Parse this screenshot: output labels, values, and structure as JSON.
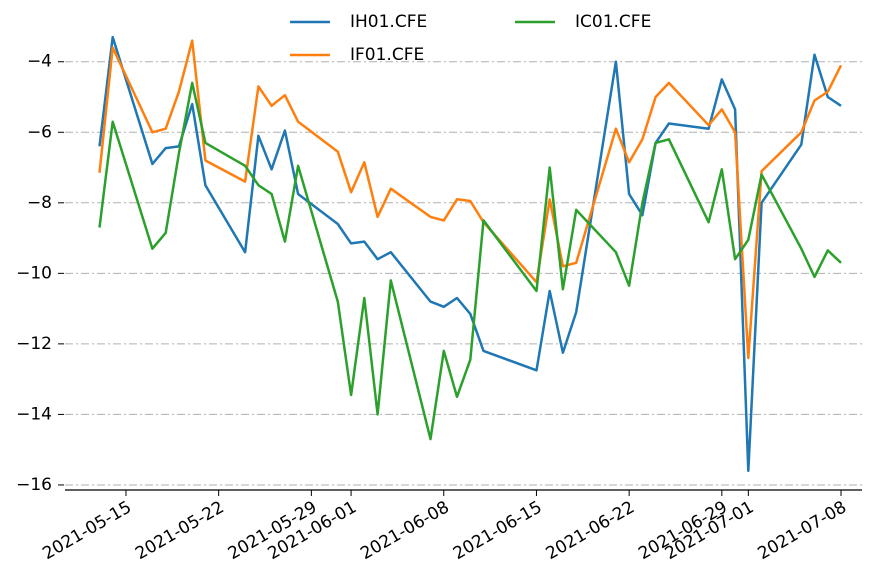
{
  "chart_data": {
    "type": "line",
    "x": [
      "2021-05-13",
      "2021-05-14",
      "2021-05-17",
      "2021-05-18",
      "2021-05-19",
      "2021-05-20",
      "2021-05-21",
      "2021-05-24",
      "2021-05-25",
      "2021-05-26",
      "2021-05-27",
      "2021-05-28",
      "2021-05-31",
      "2021-06-01",
      "2021-06-02",
      "2021-06-03",
      "2021-06-04",
      "2021-06-07",
      "2021-06-08",
      "2021-06-09",
      "2021-06-10",
      "2021-06-11",
      "2021-06-15",
      "2021-06-16",
      "2021-06-17",
      "2021-06-18",
      "2021-06-21",
      "2021-06-22",
      "2021-06-23",
      "2021-06-24",
      "2021-06-25",
      "2021-06-28",
      "2021-06-29",
      "2021-06-30",
      "2021-07-01",
      "2021-07-02",
      "2021-07-05",
      "2021-07-06",
      "2021-07-07",
      "2021-07-08"
    ],
    "series": [
      {
        "name": "IH01.CFE",
        "color": "#1f77b4",
        "values": [
          -6.4,
          -3.3,
          -6.9,
          -6.45,
          -6.4,
          -5.2,
          -7.5,
          -9.4,
          -6.1,
          -7.05,
          -5.95,
          -7.75,
          -8.6,
          -9.15,
          -9.1,
          -9.6,
          -9.4,
          -10.8,
          -10.95,
          -10.7,
          -11.15,
          -12.2,
          -12.75,
          -10.5,
          -12.25,
          -11.1,
          -4.0,
          -7.75,
          -8.35,
          -6.3,
          -5.75,
          -5.9,
          -4.5,
          -5.35,
          -15.6,
          -8.0,
          -6.35,
          -3.8,
          -5.0,
          -5.25
        ]
      },
      {
        "name": "IF01.CFE",
        "color": "#ff7f0e",
        "values": [
          -7.15,
          -3.6,
          -6.0,
          -5.9,
          -4.85,
          -3.4,
          -6.8,
          -7.4,
          -4.7,
          -5.25,
          -4.95,
          -5.7,
          -6.55,
          -7.7,
          -6.85,
          -8.4,
          -7.6,
          -8.4,
          -8.5,
          -7.9,
          -7.95,
          -8.55,
          -10.25,
          -7.9,
          -9.8,
          -9.7,
          -5.9,
          -6.85,
          -6.2,
          -5.0,
          -4.6,
          -5.8,
          -5.35,
          -6.0,
          -12.4,
          -7.1,
          -6.0,
          -5.1,
          -4.85,
          -4.1
        ]
      },
      {
        "name": "IC01.CFE",
        "color": "#2ca02c",
        "values": [
          -8.7,
          -5.7,
          -9.3,
          -8.85,
          -6.6,
          -4.6,
          -6.3,
          -6.95,
          -7.5,
          -7.75,
          -9.1,
          -6.95,
          -10.8,
          -13.45,
          -10.7,
          -14.0,
          -10.2,
          -14.7,
          -12.2,
          -13.5,
          -12.45,
          -8.5,
          -10.5,
          -7.0,
          -10.45,
          -8.2,
          -9.4,
          -10.35,
          -8.0,
          -6.3,
          -6.2,
          -8.55,
          -7.05,
          -9.6,
          -9.05,
          -7.2,
          -9.3,
          -10.1,
          -9.35,
          -9.7
        ]
      }
    ],
    "xlim": [
      "2021-05-11",
      "2021-07-10"
    ],
    "xticks": [
      "2021-05-15",
      "2021-05-22",
      "2021-05-29",
      "2021-06-01",
      "2021-06-08",
      "2021-06-15",
      "2021-06-22",
      "2021-06-29",
      "2021-07-01",
      "2021-07-08"
    ],
    "ylim": [
      -16.2,
      -3.1
    ],
    "yticks": [
      {
        "value": -16,
        "label": "−16"
      },
      {
        "value": -14,
        "label": "−14"
      },
      {
        "value": -12,
        "label": "−12"
      },
      {
        "value": -10,
        "label": "−10"
      },
      {
        "value": -8,
        "label": "−8"
      },
      {
        "value": -6,
        "label": "−6"
      },
      {
        "value": -4,
        "label": "−4"
      }
    ],
    "grid": true,
    "legend": "upper center"
  }
}
